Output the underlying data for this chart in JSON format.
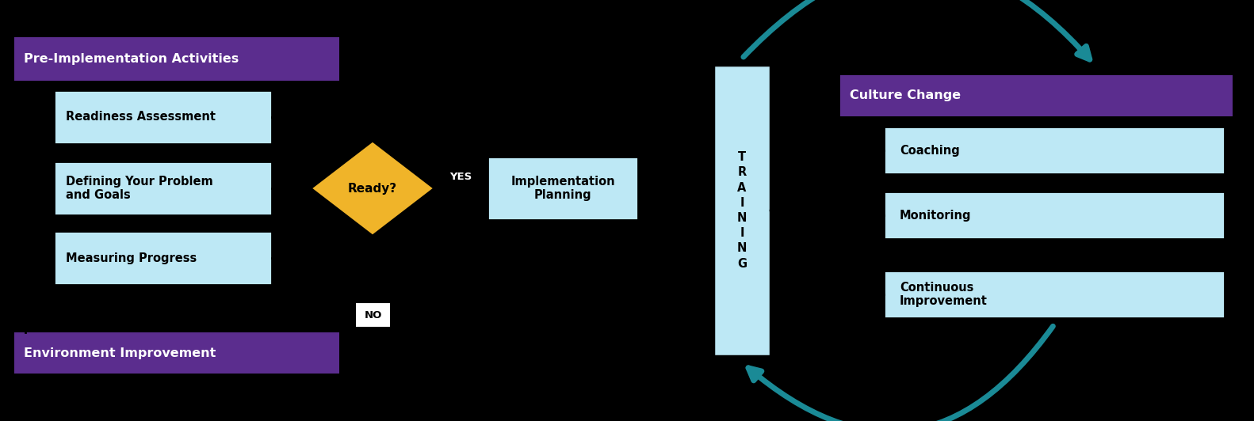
{
  "bg_color": "#000000",
  "purple_color": "#5b2d8e",
  "light_blue_box": "#bde8f5",
  "teal_arrow": "#1a8a96",
  "yellow_diamond": "#f0b429",
  "white": "#ffffff",
  "black": "#000000",
  "pre_impl_label": "Pre-Implementation Activities",
  "env_label": "Environment Improvement",
  "culture_label": "Culture Change",
  "training_label": "T\nR\nA\nI\nN\nI\nN\nG",
  "left_boxes": [
    "Readiness Assessment",
    "Defining Your Problem\nand Goals",
    "Measuring Progress"
  ],
  "right_boxes": [
    "Coaching",
    "Monitoring",
    "Continuous\nImprovement"
  ],
  "ready_label": "Ready?",
  "yes_label": "YES",
  "no_label": "NO",
  "impl_planning_label": "Implementation\nPlanning"
}
